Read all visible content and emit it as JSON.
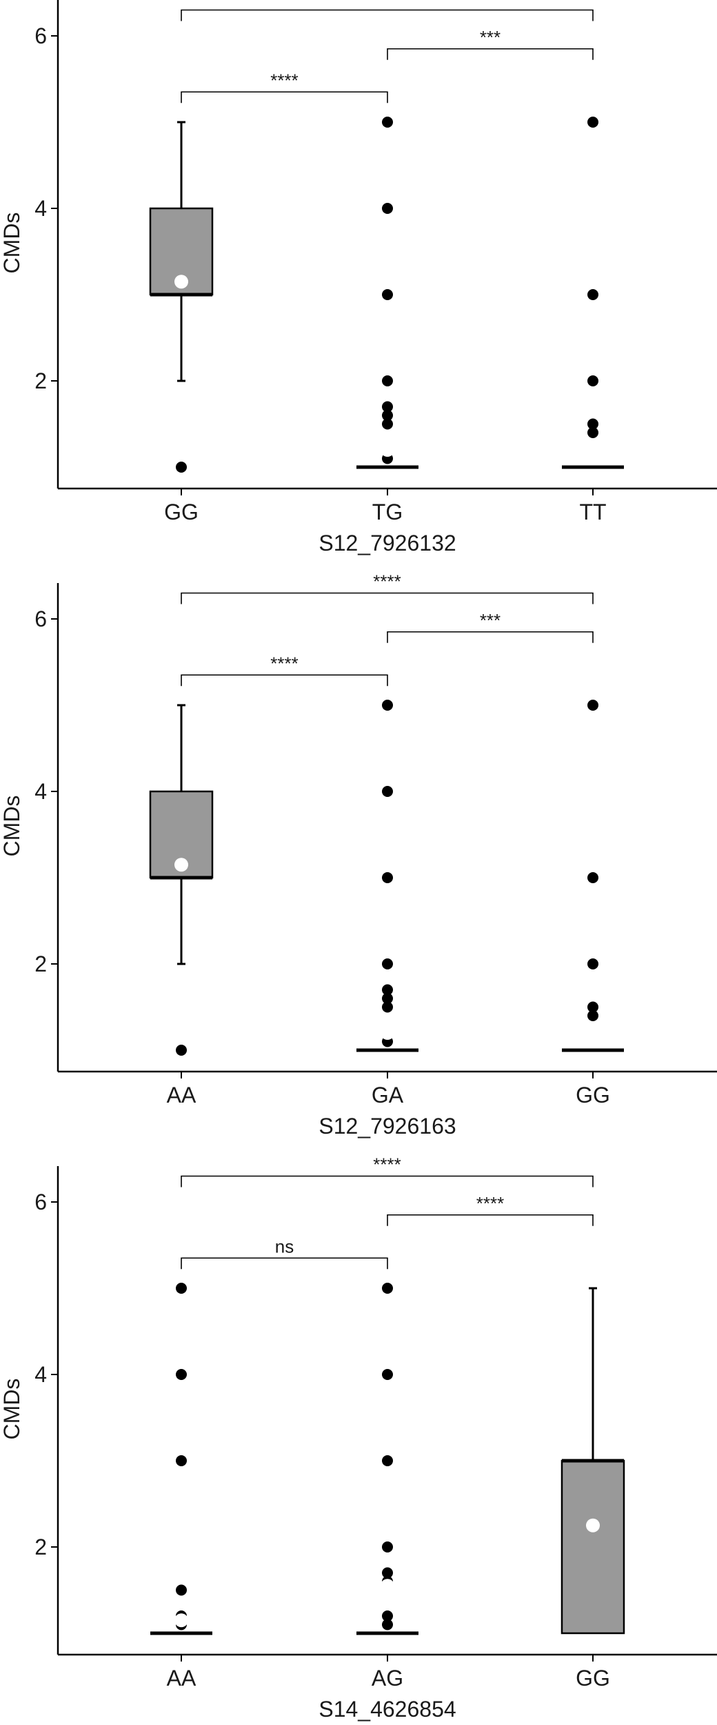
{
  "chart_data": [
    {
      "type": "box",
      "xlabel": "S12_7926132",
      "ylabel": "CMDs",
      "ylim": [
        0.7,
        6.5
      ],
      "yticks": [
        2,
        4,
        6
      ],
      "categories": [
        "GG",
        "TG",
        "TT"
      ],
      "boxes": [
        {
          "category": "GG",
          "q1": 3,
          "median": 3,
          "q3": 4,
          "whisker_low": 2,
          "whisker_high": 5,
          "mean": 3.15,
          "outliers": [
            1
          ]
        },
        {
          "category": "TG",
          "q1": 1,
          "median": 1,
          "q3": 1,
          "whisker_low": 1,
          "whisker_high": 1,
          "mean": 1.2,
          "outliers": [
            5,
            4,
            3,
            2,
            1.7,
            1.6,
            1.5,
            1.2,
            1.1
          ]
        },
        {
          "category": "TT",
          "q1": 1,
          "median": 1,
          "q3": 1,
          "whisker_low": 1,
          "whisker_high": 1,
          "mean": 1.2,
          "outliers": [
            5,
            3,
            2,
            1.5,
            1.4
          ]
        }
      ],
      "comparisons": [
        {
          "from": "GG",
          "to": "TT",
          "y": 6.3,
          "label": "****"
        },
        {
          "from": "TG",
          "to": "TT",
          "y": 5.85,
          "label": "***"
        },
        {
          "from": "GG",
          "to": "TG",
          "y": 5.35,
          "label": "****"
        }
      ]
    },
    {
      "type": "box",
      "xlabel": "S12_7926163",
      "ylabel": "CMDs",
      "ylim": [
        0.7,
        6.5
      ],
      "yticks": [
        2,
        4,
        6
      ],
      "categories": [
        "AA",
        "GA",
        "GG"
      ],
      "boxes": [
        {
          "category": "AA",
          "q1": 3,
          "median": 3,
          "q3": 4,
          "whisker_low": 2,
          "whisker_high": 5,
          "mean": 3.15,
          "outliers": [
            1
          ]
        },
        {
          "category": "GA",
          "q1": 1,
          "median": 1,
          "q3": 1,
          "whisker_low": 1,
          "whisker_high": 1,
          "mean": 1.2,
          "outliers": [
            5,
            4,
            3,
            2,
            1.7,
            1.6,
            1.5,
            1.2,
            1.1
          ]
        },
        {
          "category": "GG",
          "q1": 1,
          "median": 1,
          "q3": 1,
          "whisker_low": 1,
          "whisker_high": 1,
          "mean": 1.2,
          "outliers": [
            5,
            3,
            2,
            1.5,
            1.4
          ]
        }
      ],
      "comparisons": [
        {
          "from": "AA",
          "to": "GG",
          "y": 6.3,
          "label": "****"
        },
        {
          "from": "GA",
          "to": "GG",
          "y": 5.85,
          "label": "***"
        },
        {
          "from": "AA",
          "to": "GA",
          "y": 5.35,
          "label": "****"
        }
      ]
    },
    {
      "type": "box",
      "xlabel": "S14_4626854",
      "ylabel": "CMDs",
      "ylim": [
        0.7,
        6.5
      ],
      "yticks": [
        2,
        4,
        6
      ],
      "categories": [
        "AA",
        "AG",
        "GG"
      ],
      "boxes": [
        {
          "category": "AA",
          "q1": 1,
          "median": 1,
          "q3": 1,
          "whisker_low": 1,
          "whisker_high": 1,
          "mean": 1.15,
          "outliers": [
            5,
            4,
            3,
            1.5,
            1.2,
            1.1
          ]
        },
        {
          "category": "AG",
          "q1": 1,
          "median": 1,
          "q3": 1,
          "whisker_low": 1,
          "whisker_high": 1,
          "mean": 1.55,
          "outliers": [
            5,
            4,
            3,
            2,
            1.7,
            1.6,
            1.2,
            1.1
          ]
        },
        {
          "category": "GG",
          "q1": 1,
          "median": 3,
          "q3": 3,
          "whisker_low": 1,
          "whisker_high": 5,
          "mean": 2.25,
          "outliers": []
        }
      ],
      "comparisons": [
        {
          "from": "AA",
          "to": "GG",
          "y": 6.3,
          "label": "****"
        },
        {
          "from": "AG",
          "to": "GG",
          "y": 5.85,
          "label": "****"
        },
        {
          "from": "AA",
          "to": "AG",
          "y": 5.35,
          "label": "ns"
        }
      ]
    }
  ],
  "colors": {
    "box_fill": "#999999",
    "ink": "#000000",
    "mean_marker": "#ffffff"
  }
}
